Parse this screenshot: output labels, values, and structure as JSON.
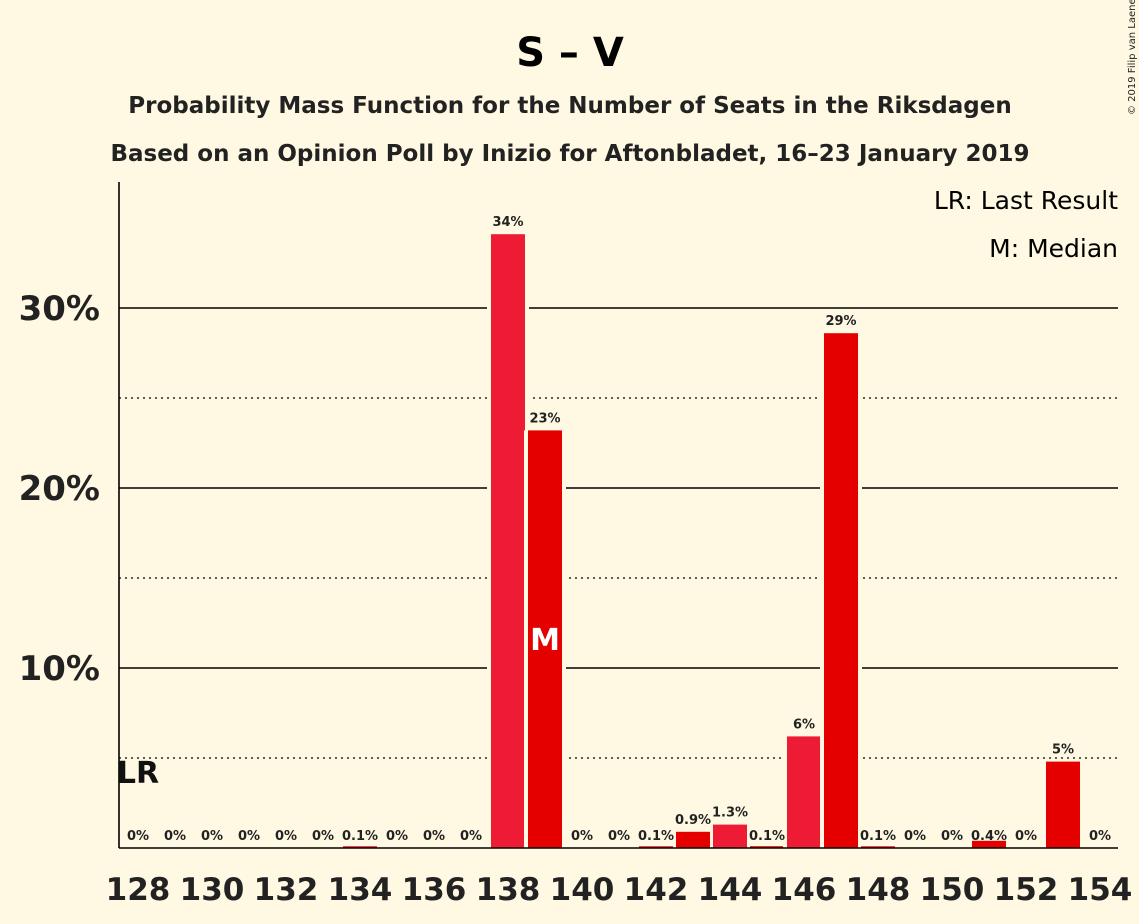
{
  "chart_data": {
    "type": "bar",
    "title": "S – V",
    "subtitle_1": "Probability Mass Function for the Number of Seats in the Riksdagen",
    "subtitle_2": "Based on an Opinion Poll by Inizio for Aftonbladet, 16–23 January 2019",
    "copyright": "© 2019 Filip van Laenen",
    "legend": [
      "LR: Last Result",
      "M: Median"
    ],
    "last_result_label": "LR",
    "last_result_seat": 128,
    "median_label": "M",
    "median_seat": 139,
    "xlabel": "",
    "ylabel": "",
    "xlim": [
      128,
      154
    ],
    "ylim": [
      0,
      37
    ],
    "yticks": [
      {
        "value": 10,
        "label": "10%"
      },
      {
        "value": 20,
        "label": "20%"
      },
      {
        "value": 30,
        "label": "30%"
      }
    ],
    "minor_gridlines": [
      5,
      15,
      25
    ],
    "xticks": [
      {
        "value": 128,
        "label": "128"
      },
      {
        "value": 130,
        "label": "130"
      },
      {
        "value": 132,
        "label": "132"
      },
      {
        "value": 134,
        "label": "134"
      },
      {
        "value": 136,
        "label": "136"
      },
      {
        "value": 138,
        "label": "138"
      },
      {
        "value": 140,
        "label": "140"
      },
      {
        "value": 142,
        "label": "142"
      },
      {
        "value": 144,
        "label": "144"
      },
      {
        "value": 146,
        "label": "146"
      },
      {
        "value": 148,
        "label": "148"
      },
      {
        "value": 150,
        "label": "150"
      },
      {
        "value": 152,
        "label": "152"
      },
      {
        "value": 154,
        "label": "154"
      }
    ],
    "bars": [
      {
        "seat": 128,
        "value": 0,
        "label": "0%"
      },
      {
        "seat": 129,
        "value": 0,
        "label": "0%"
      },
      {
        "seat": 130,
        "value": 0,
        "label": "0%"
      },
      {
        "seat": 131,
        "value": 0,
        "label": "0%"
      },
      {
        "seat": 132,
        "value": 0,
        "label": "0%"
      },
      {
        "seat": 133,
        "value": 0,
        "label": "0%"
      },
      {
        "seat": 134,
        "value": 0.1,
        "label": "0.1%"
      },
      {
        "seat": 135,
        "value": 0,
        "label": "0%"
      },
      {
        "seat": 136,
        "value": 0,
        "label": "0%"
      },
      {
        "seat": 137,
        "value": 0,
        "label": "0%"
      },
      {
        "seat": 138,
        "value": 34.1,
        "label": "34%"
      },
      {
        "seat": 139,
        "value": 23.2,
        "label": "23%"
      },
      {
        "seat": 140,
        "value": 0,
        "label": "0%"
      },
      {
        "seat": 141,
        "value": 0,
        "label": "0%"
      },
      {
        "seat": 142,
        "value": 0.1,
        "label": "0.1%"
      },
      {
        "seat": 143,
        "value": 0.9,
        "label": "0.9%"
      },
      {
        "seat": 144,
        "value": 1.3,
        "label": "1.3%"
      },
      {
        "seat": 145,
        "value": 0.1,
        "label": "0.1%"
      },
      {
        "seat": 146,
        "value": 6.2,
        "label": "6%"
      },
      {
        "seat": 147,
        "value": 28.6,
        "label": "29%"
      },
      {
        "seat": 148,
        "value": 0.1,
        "label": "0.1%"
      },
      {
        "seat": 149,
        "value": 0,
        "label": "0%"
      },
      {
        "seat": 150,
        "value": 0,
        "label": "0%"
      },
      {
        "seat": 151,
        "value": 0.4,
        "label": "0.4%"
      },
      {
        "seat": 152,
        "value": 0,
        "label": "0%"
      },
      {
        "seat": 153,
        "value": 4.8,
        "label": "5%"
      },
      {
        "seat": 154,
        "value": 0,
        "label": "0%"
      }
    ],
    "colors": {
      "background": "#FFF9E3",
      "bar_light": "#ED1B34",
      "bar_dark": "#E50000",
      "grid": "#000000"
    },
    "grid": true,
    "legend_position": "top-right"
  }
}
